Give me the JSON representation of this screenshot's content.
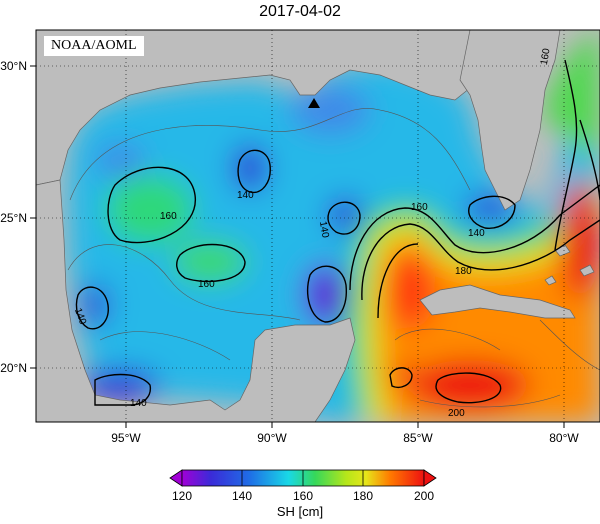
{
  "title": "2017-04-02",
  "credit": "NOAA/AOML",
  "x_ticks": [
    "95°W",
    "90°W",
    "85°W",
    "80°W"
  ],
  "y_ticks": [
    "30°N",
    "25°N",
    "20°N"
  ],
  "contour_labels": [
    "160",
    "140",
    "160",
    "140",
    "140",
    "160",
    "180",
    "140",
    "160",
    "140",
    "200"
  ],
  "colorbar": {
    "label": "SH [cm]",
    "ticks": [
      "120",
      "140",
      "160",
      "180",
      "200"
    ],
    "range": [
      120,
      200
    ]
  },
  "colors": {
    "land": "#bdbdbd",
    "min": "#a100d6",
    "low": "#3a2bd8",
    "mid": "#19d8e6",
    "green": "#36d85a",
    "yellow": "#e6e61a",
    "orange": "#ff7a00",
    "high": "#ee1111"
  }
}
